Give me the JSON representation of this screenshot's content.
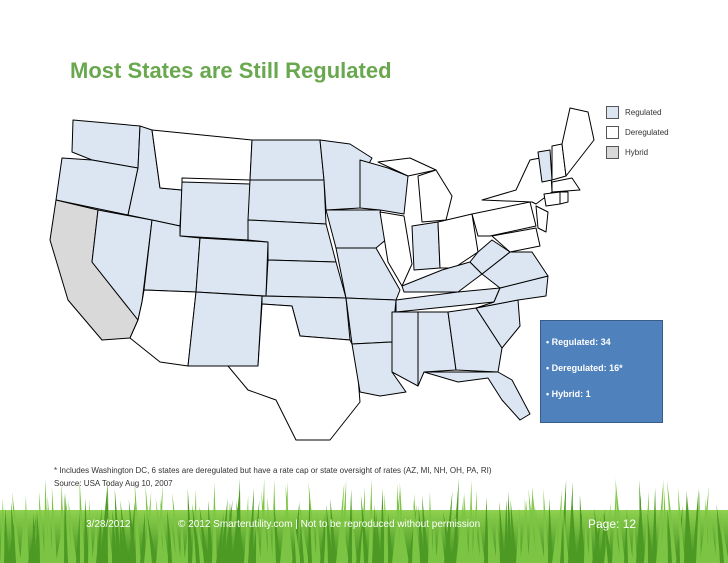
{
  "title": "Most States are Still Regulated",
  "legend": [
    {
      "label": "Regulated",
      "color": "#dce6f2"
    },
    {
      "label": "Deregulated",
      "color": "#ffffff"
    },
    {
      "label": "Hybrid",
      "color": "#d9d9d9"
    }
  ],
  "stats": {
    "regulated": "• Regulated: 34",
    "deregulated": "• Deregulated: 16*",
    "hybrid": "• Hybrid: 1"
  },
  "footnote": {
    "line1": "* Includes Washington DC, 6 states are deregulated but have a rate cap or state oversight of rates (AZ, MI, NH, OH, PA, RI)",
    "line2": "Source: USA Today Aug 10, 2007"
  },
  "footer": {
    "date": "3/28/2012",
    "copyright": "© 2012 Smarterutility.com | Not to be reproduced without permission",
    "page": "Page: 12"
  },
  "colors": {
    "regulated": "#dce6f2",
    "deregulated": "#ffffff",
    "hybrid": "#d9d9d9",
    "title": "#6aa84f",
    "stats_box": "#4f81bd"
  }
}
